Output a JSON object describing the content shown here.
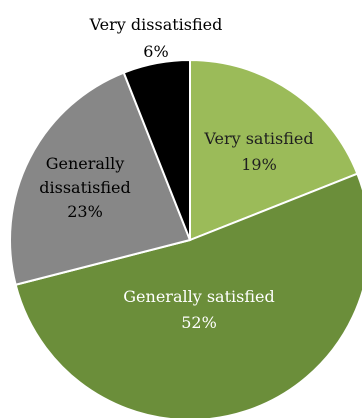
{
  "chart_data": {
    "type": "pie",
    "title": "",
    "start_angle_deg": 0,
    "direction": "clockwise",
    "legend": "none",
    "slices": [
      {
        "name": "Very satisfied",
        "value": 19,
        "value_label": "19%",
        "label_lines": [
          "Very satisfied"
        ],
        "color": "#9bbb59",
        "label_color": "#1f1f1f"
      },
      {
        "name": "Generally satisfied",
        "value": 52,
        "value_label": "52%",
        "label_lines": [
          "Generally satisfied"
        ],
        "color": "#6b8e3a",
        "label_color": "#ffffff"
      },
      {
        "name": "Generally dissatisfied",
        "value": 23,
        "value_label": "23%",
        "label_lines": [
          "Generally",
          "dissatisfied"
        ],
        "color": "#878787",
        "label_color": "#000000"
      },
      {
        "name": "Very dissatisfied",
        "value": 6,
        "value_label": "6%",
        "label_lines": [
          "Very dissatisfied"
        ],
        "color": "#000000",
        "label_color": "#000000"
      }
    ]
  }
}
